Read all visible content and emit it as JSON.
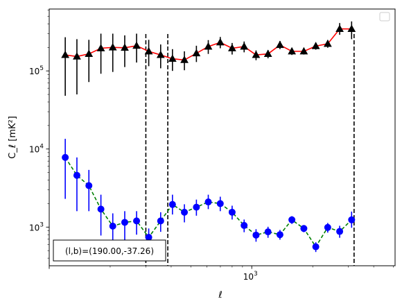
{
  "chart_data": {
    "type": "scatter",
    "xlabel": "ℓ",
    "ylabel": "C_ℓ [mK²]",
    "xscale": "log",
    "yscale": "log",
    "xlim": [
      100,
      5100
    ],
    "ylim": [
      320,
      620000
    ],
    "x_tick_labels": [
      {
        "value": 1000,
        "label": "10",
        "exp": "3"
      }
    ],
    "y_tick_labels": [
      {
        "value": 1000,
        "label": "10",
        "exp": "3"
      },
      {
        "value": 10000,
        "label": "10",
        "exp": "4"
      },
      {
        "value": 100000,
        "label": "10",
        "exp": "5"
      }
    ],
    "annotation": "(l,b)=(190.00,-37.26)",
    "vlines": [
      300,
      385,
      3200
    ],
    "legend": "upper right (empty)",
    "series": [
      {
        "marker": "triangle",
        "marker_color": "#000000",
        "line_color": "#ff0000",
        "line_style": "solid",
        "points": [
          {
            "x": 120,
            "y": 160000,
            "lo": 48000,
            "hi": 270000
          },
          {
            "x": 137,
            "y": 153000,
            "lo": 50000,
            "hi": 255000
          },
          {
            "x": 157,
            "y": 165000,
            "lo": 72000,
            "hi": 250000
          },
          {
            "x": 180,
            "y": 195000,
            "lo": 92000,
            "hi": 300000
          },
          {
            "x": 206,
            "y": 200000,
            "lo": 97000,
            "hi": 300000
          },
          {
            "x": 236,
            "y": 198000,
            "lo": 112000,
            "hi": 285000
          },
          {
            "x": 270,
            "y": 210000,
            "lo": 128000,
            "hi": 300000
          },
          {
            "x": 310,
            "y": 178000,
            "lo": 115000,
            "hi": 250000
          },
          {
            "x": 355,
            "y": 160000,
            "lo": 108000,
            "hi": 218000
          },
          {
            "x": 406,
            "y": 143000,
            "lo": 100000,
            "hi": 190000
          },
          {
            "x": 465,
            "y": 138000,
            "lo": 102000,
            "hi": 178000
          },
          {
            "x": 533,
            "y": 168000,
            "lo": 130000,
            "hi": 210000
          },
          {
            "x": 610,
            "y": 205000,
            "lo": 165000,
            "hi": 248000
          },
          {
            "x": 699,
            "y": 232000,
            "lo": 195000,
            "hi": 272000
          },
          {
            "x": 800,
            "y": 195000,
            "lo": 162000,
            "hi": 228000
          },
          {
            "x": 917,
            "y": 205000,
            "lo": 173000,
            "hi": 238000
          },
          {
            "x": 1050,
            "y": 160000,
            "lo": 137000,
            "hi": 183000
          },
          {
            "x": 1203,
            "y": 165000,
            "lo": 145000,
            "hi": 185000
          },
          {
            "x": 1378,
            "y": 215000,
            "lo": 190000,
            "hi": 242000
          },
          {
            "x": 1578,
            "y": 178000,
            "lo": 160000,
            "hi": 196000
          },
          {
            "x": 1808,
            "y": 178000,
            "lo": 162000,
            "hi": 194000
          },
          {
            "x": 2071,
            "y": 208000,
            "lo": 187000,
            "hi": 230000
          },
          {
            "x": 2372,
            "y": 222000,
            "lo": 198000,
            "hi": 248000
          },
          {
            "x": 2717,
            "y": 345000,
            "lo": 290000,
            "hi": 410000
          },
          {
            "x": 3112,
            "y": 345000,
            "lo": 255000,
            "hi": 430000
          }
        ]
      },
      {
        "marker": "circle",
        "marker_color": "#0000ff",
        "line_color": "#008000",
        "line_style": "dashed",
        "points": [
          {
            "x": 120,
            "y": 7800,
            "lo": 2300,
            "hi": 13500
          },
          {
            "x": 137,
            "y": 4600,
            "lo": 1600,
            "hi": 7800
          },
          {
            "x": 157,
            "y": 3400,
            "lo": 1600,
            "hi": 5400
          },
          {
            "x": 180,
            "y": 1700,
            "lo": 780,
            "hi": 2600
          },
          {
            "x": 206,
            "y": 1030,
            "lo": 580,
            "hi": 1500
          },
          {
            "x": 236,
            "y": 1150,
            "lo": 680,
            "hi": 1600
          },
          {
            "x": 270,
            "y": 1200,
            "lo": 800,
            "hi": 1600
          },
          {
            "x": 310,
            "y": 740,
            "lo": 520,
            "hi": 960
          },
          {
            "x": 355,
            "y": 1200,
            "lo": 870,
            "hi": 1550
          },
          {
            "x": 406,
            "y": 1950,
            "lo": 1450,
            "hi": 2600
          },
          {
            "x": 465,
            "y": 1550,
            "lo": 1150,
            "hi": 1960
          },
          {
            "x": 533,
            "y": 1800,
            "lo": 1400,
            "hi": 2250
          },
          {
            "x": 610,
            "y": 2100,
            "lo": 1700,
            "hi": 2600
          },
          {
            "x": 699,
            "y": 2000,
            "lo": 1600,
            "hi": 2450
          },
          {
            "x": 800,
            "y": 1550,
            "lo": 1250,
            "hi": 1880
          },
          {
            "x": 917,
            "y": 1050,
            "lo": 860,
            "hi": 1250
          },
          {
            "x": 1050,
            "y": 790,
            "lo": 650,
            "hi": 940
          },
          {
            "x": 1203,
            "y": 870,
            "lo": 730,
            "hi": 1010
          },
          {
            "x": 1378,
            "y": 800,
            "lo": 690,
            "hi": 920
          },
          {
            "x": 1578,
            "y": 1240,
            "lo": 1100,
            "hi": 1380
          },
          {
            "x": 1808,
            "y": 960,
            "lo": 860,
            "hi": 1060
          },
          {
            "x": 2071,
            "y": 560,
            "lo": 480,
            "hi": 640
          },
          {
            "x": 2372,
            "y": 990,
            "lo": 850,
            "hi": 1130
          },
          {
            "x": 2717,
            "y": 880,
            "lo": 730,
            "hi": 1040
          },
          {
            "x": 3112,
            "y": 1240,
            "lo": 980,
            "hi": 1580
          }
        ]
      }
    ]
  }
}
